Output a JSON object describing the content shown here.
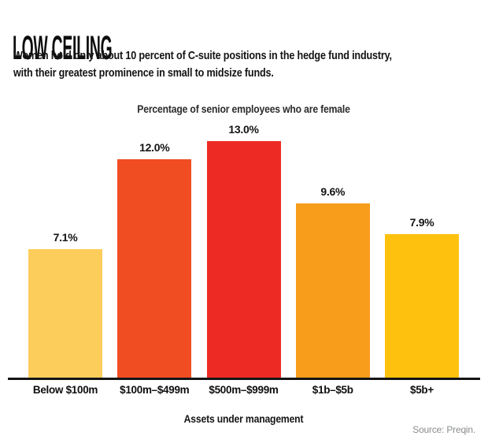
{
  "header": {
    "title": "LOW CEILING",
    "subtitle_line1": "Women hold only about 10 percent of C-suite positions in the hedge fund industry,",
    "subtitle_line2": "with their greatest prominence in small to midsize funds."
  },
  "chart_data": {
    "type": "bar",
    "title": "Percentage of senior employees who are female",
    "xlabel": "Assets under management",
    "ylabel": "",
    "categories": [
      "Below $100m",
      "$100m–$499m",
      "$500m–$999m",
      "$1b–$5b",
      "$5b+"
    ],
    "values": [
      7.1,
      12.0,
      13.0,
      9.6,
      7.9
    ],
    "value_labels": [
      "7.1%",
      "12.0%",
      "13.0%",
      "9.6%",
      "7.9%"
    ],
    "bar_colors": [
      "#FDCD5C",
      "#F04D23",
      "#ED2B24",
      "#F89C1C",
      "#FEC20E"
    ],
    "ylim": [
      0,
      13
    ],
    "grid": false,
    "legend": "none",
    "data_labels": "above-bars"
  },
  "footer": {
    "source": "Source: Preqin."
  },
  "colors": {
    "background": "#FFFFFF",
    "text": "#141414",
    "axis": "#141414",
    "source_text": "#8A8C8E"
  }
}
